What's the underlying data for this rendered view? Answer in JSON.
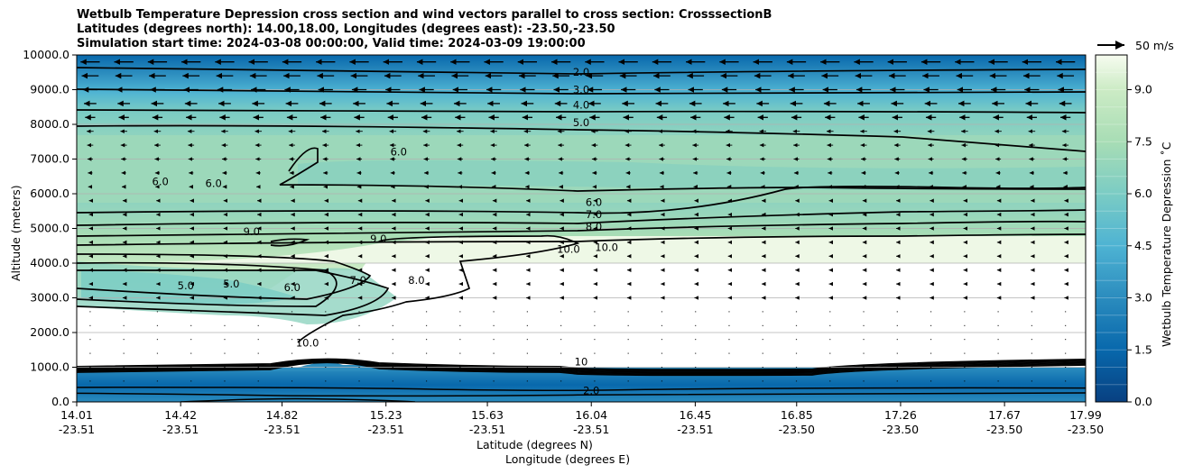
{
  "title_lines": [
    "Wetbulb Temperature Depression cross section and wind vectors parallel to cross section: CrosssectionB",
    "Latitudes (degrees north): 14.00,18.00, Longitudes (degrees east): -23.50,-23.50",
    "Simulation start time: 2024-03-08 00:00:00, Valid time: 2024-03-09 19:00:00"
  ],
  "vector_key": "50 m/s",
  "chart_data": {
    "type": "heatmap",
    "ylabel": "Altitude (meters)",
    "xlabel_lat": "Latitude (degrees N)",
    "xlabel_lon": "Longitude (degrees E)",
    "ylim": [
      0,
      10000
    ],
    "y_ticks": [
      "0.0",
      "1000.0",
      "2000.0",
      "3000.0",
      "4000.0",
      "5000.0",
      "6000.0",
      "7000.0",
      "8000.0",
      "9000.0",
      "10000.0"
    ],
    "x_ticks": [
      {
        "lat": "14.01",
        "lon": "-23.51"
      },
      {
        "lat": "14.42",
        "lon": "-23.51"
      },
      {
        "lat": "14.82",
        "lon": "-23.51"
      },
      {
        "lat": "15.23",
        "lon": "-23.51"
      },
      {
        "lat": "15.63",
        "lon": "-23.51"
      },
      {
        "lat": "16.04",
        "lon": "-23.51"
      },
      {
        "lat": "16.45",
        "lon": "-23.51"
      },
      {
        "lat": "16.85",
        "lon": "-23.50"
      },
      {
        "lat": "17.26",
        "lon": "-23.50"
      },
      {
        "lat": "17.67",
        "lon": "-23.50"
      },
      {
        "lat": "17.99",
        "lon": "-23.50"
      }
    ],
    "colorbar": {
      "label": "Wetbulb Temperature Depression ˚C",
      "range": [
        0,
        10
      ],
      "ticks": [
        "0.0",
        "1.5",
        "3.0",
        "4.5",
        "6.0",
        "7.5",
        "9.0"
      ],
      "colormap": "GnBu_r"
    },
    "grid": "horizontal",
    "contour_labels": [
      {
        "text": "2.0",
        "lat": 16.0,
        "alt": 9400
      },
      {
        "text": "3.0",
        "lat": 16.0,
        "alt": 8900
      },
      {
        "text": "4.0",
        "lat": 16.0,
        "alt": 8450
      },
      {
        "text": "5.0",
        "lat": 16.0,
        "alt": 7950
      },
      {
        "text": "6.0",
        "lat": 16.05,
        "alt": 5650
      },
      {
        "text": "7.0",
        "lat": 16.05,
        "alt": 5300
      },
      {
        "text": "8.0",
        "lat": 16.05,
        "alt": 4950
      },
      {
        "text": "10.0",
        "lat": 15.95,
        "alt": 4300
      },
      {
        "text": "10.0",
        "lat": 16.1,
        "alt": 4350
      },
      {
        "text": "6.0",
        "lat": 15.28,
        "alt": 7100
      },
      {
        "text": "6.0",
        "lat": 14.34,
        "alt": 6250
      },
      {
        "text": "6.0",
        "lat": 14.55,
        "alt": 6200
      },
      {
        "text": "9.0",
        "lat": 14.7,
        "alt": 4800
      },
      {
        "text": "9.0",
        "lat": 15.2,
        "alt": 4600
      },
      {
        "text": "5.0",
        "lat": 14.44,
        "alt": 3250
      },
      {
        "text": "5.0",
        "lat": 14.62,
        "alt": 3300
      },
      {
        "text": "6.0",
        "lat": 14.86,
        "alt": 3200
      },
      {
        "text": "7.0",
        "lat": 15.12,
        "alt": 3400
      },
      {
        "text": "8.0",
        "lat": 15.35,
        "alt": 3400
      },
      {
        "text": "10.0",
        "lat": 14.92,
        "alt": 1600
      },
      {
        "text": "2.0",
        "lat": 16.04,
        "alt": 220
      },
      {
        "text": "10",
        "lat": 16.0,
        "alt": 1050
      }
    ]
  }
}
